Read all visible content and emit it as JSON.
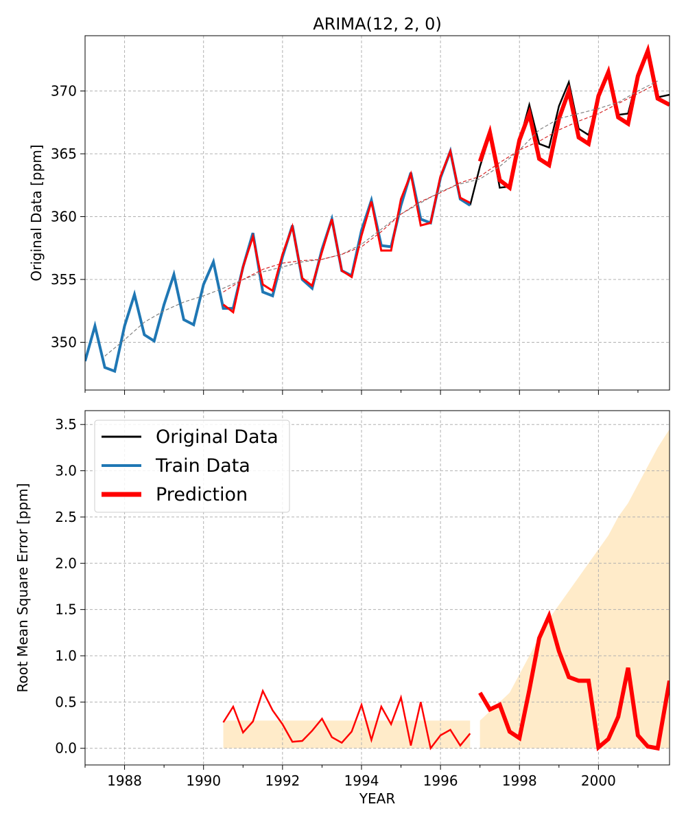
{
  "chart_data": [
    {
      "type": "line",
      "title": "ARIMA(12, 2, 0)",
      "xlabel": "",
      "ylabel": "Original Data [ppm]",
      "xlim": [
        1987.0,
        2001.8
      ],
      "ylim": [
        346.2,
        374.4
      ],
      "xticks": [
        1988,
        1990,
        1992,
        1994,
        1996,
        1998,
        2000
      ],
      "yticks": [
        350,
        355,
        360,
        365,
        370
      ],
      "grid": true,
      "series": [
        {
          "name": "Original Data",
          "color": "#000000",
          "x": [
            1996.75,
            1997.0,
            1997.25,
            1997.5,
            1997.75,
            1998.0,
            1998.25,
            1998.5,
            1998.75,
            1999.0,
            1999.25,
            1999.5,
            1999.75,
            2000.0,
            2000.25,
            2000.5,
            2000.75,
            2001.0,
            2001.25,
            2001.5,
            2001.8
          ],
          "y": [
            360.9,
            364.0,
            366.5,
            362.3,
            362.4,
            366.0,
            368.9,
            365.8,
            365.5,
            368.8,
            370.7,
            367.0,
            366.5,
            369.5,
            371.4,
            368.1,
            368.2,
            371.3,
            373.1,
            369.5,
            369.7
          ]
        },
        {
          "name": "Train Data",
          "color": "#1f77b4",
          "x": [
            1987.0,
            1987.25,
            1987.5,
            1987.75,
            1988.0,
            1988.25,
            1988.5,
            1988.75,
            1989.0,
            1989.25,
            1989.5,
            1989.75,
            1990.0,
            1990.25,
            1990.5,
            1990.75,
            1991.0,
            1991.25,
            1991.5,
            1991.75,
            1992.0,
            1992.25,
            1992.5,
            1992.75,
            1993.0,
            1993.25,
            1993.5,
            1993.75,
            1994.0,
            1994.25,
            1994.5,
            1994.75,
            1995.0,
            1995.25,
            1995.5,
            1995.75,
            1996.0,
            1996.25,
            1996.5,
            1996.75
          ],
          "y": [
            348.5,
            351.3,
            348.0,
            347.7,
            351.3,
            353.8,
            350.6,
            350.1,
            353.0,
            355.4,
            351.8,
            351.4,
            354.6,
            356.4,
            352.7,
            352.7,
            356.0,
            358.7,
            354.0,
            353.7,
            356.8,
            359.3,
            355.0,
            354.3,
            357.4,
            359.8,
            355.7,
            355.3,
            358.9,
            361.3,
            357.7,
            357.6,
            360.9,
            363.5,
            359.8,
            359.5,
            363.1,
            365.2,
            361.4,
            360.9
          ]
        },
        {
          "name": "Prediction",
          "color": "#ff0000",
          "x": [
            1990.5,
            1990.75,
            1991.0,
            1991.25,
            1991.5,
            1991.75,
            1992.0,
            1992.25,
            1992.5,
            1992.75,
            1993.0,
            1993.25,
            1993.5,
            1993.75,
            1994.0,
            1994.25,
            1994.5,
            1994.75,
            1995.0,
            1995.25,
            1995.5,
            1995.75,
            1996.0,
            1996.25,
            1996.5,
            1996.75
          ],
          "y": [
            353.0,
            352.4,
            356.0,
            358.4,
            354.6,
            354.1,
            357.0,
            359.2,
            355.1,
            354.5,
            357.2,
            359.8,
            355.7,
            355.2,
            358.5,
            361.2,
            357.3,
            357.3,
            361.4,
            363.4,
            359.3,
            359.5,
            363.2,
            365.2,
            361.5,
            361.1
          ]
        },
        {
          "name": "Prediction",
          "color": "#ff0000",
          "x": [
            1997.0,
            1997.25,
            1997.5,
            1997.75,
            1998.0,
            1998.25,
            1998.5,
            1998.75,
            1999.0,
            1999.25,
            1999.5,
            1999.75,
            2000.0,
            2000.25,
            2000.5,
            2000.75,
            2001.0,
            2001.25,
            2001.5,
            2001.8
          ],
          "y": [
            364.4,
            366.7,
            362.9,
            362.3,
            366.1,
            368.2,
            364.6,
            364.1,
            367.8,
            370.0,
            366.3,
            365.8,
            369.6,
            371.5,
            367.9,
            367.4,
            371.2,
            373.2,
            369.4,
            368.9
          ]
        },
        {
          "name": "",
          "color": "#808080",
          "x": [
            1987.5,
            1988.0,
            1988.5,
            1989.0,
            1989.5,
            1990.0,
            1990.5,
            1991.0,
            1991.5,
            1992.0,
            1992.5,
            1993.0,
            1993.5,
            1994.0,
            1994.5,
            1995.0,
            1995.5,
            1996.0,
            1996.5,
            1997.0,
            1997.5,
            1998.0,
            1998.5,
            1999.0,
            1999.5,
            2000.0,
            2000.5,
            2001.0,
            2001.5
          ],
          "y": [
            348.9,
            350.2,
            351.6,
            352.5,
            353.2,
            353.7,
            354.3,
            355.0,
            355.6,
            356.0,
            356.4,
            356.6,
            357.0,
            357.8,
            359.0,
            360.2,
            361.1,
            362.0,
            362.6,
            363.0,
            364.0,
            365.3,
            366.9,
            367.8,
            368.2,
            368.6,
            369.1,
            370.0,
            370.8
          ]
        },
        {
          "name": "",
          "color": "#d62728",
          "x": [
            1990.5,
            1991.0,
            1991.5,
            1992.0,
            1992.5,
            1993.0,
            1993.5,
            1994.0,
            1994.5,
            1995.0,
            1995.5,
            1996.0,
            1996.5,
            1997.0,
            1997.5,
            1998.0,
            1998.5,
            1999.0,
            1999.5,
            2000.0,
            2000.5,
            2001.0,
            2001.5
          ],
          "y": [
            354.0,
            355.0,
            355.8,
            356.3,
            356.5,
            356.6,
            357.0,
            357.6,
            358.8,
            360.2,
            361.2,
            361.9,
            362.7,
            363.2,
            364.3,
            365.3,
            366.0,
            366.9,
            367.6,
            368.2,
            369.0,
            369.8,
            370.6
          ]
        }
      ]
    },
    {
      "type": "line",
      "title": "",
      "xlabel": "YEAR",
      "ylabel": "Root Mean Square Error [ppm]",
      "xlim": [
        1987.0,
        2001.8
      ],
      "ylim": [
        -0.18,
        3.65
      ],
      "xticks": [
        1988,
        1990,
        1992,
        1994,
        1996,
        1998,
        2000
      ],
      "xtick_labels": [
        "1988",
        "1990",
        "1992",
        "1994",
        "1996",
        "1998",
        "2000"
      ],
      "yticks": [
        0.0,
        0.5,
        1.0,
        1.5,
        2.0,
        2.5,
        3.0,
        3.5
      ],
      "ytick_labels": [
        "0.0",
        "0.5",
        "1.0",
        "1.5",
        "2.0",
        "2.5",
        "3.0",
        "3.5"
      ],
      "grid": true,
      "legend": {
        "placement": "top-left",
        "entries": [
          {
            "label": "Original Data",
            "color": "#000000"
          },
          {
            "label": "Train Data",
            "color": "#1f77b4"
          },
          {
            "label": "Prediction",
            "color": "#ff0000"
          }
        ]
      },
      "bands": [
        {
          "color": "#ffe7bf",
          "x": [
            1990.5,
            1996.75
          ],
          "upper": [
            0.3,
            0.3
          ]
        },
        {
          "color": "#ffe7bf",
          "x": [
            1997.0,
            1997.25,
            1997.5,
            1997.75,
            1998.0,
            1998.25,
            1998.5,
            1998.75,
            1999.0,
            1999.25,
            1999.5,
            1999.75,
            2000.0,
            2000.25,
            2000.5,
            2000.75,
            2001.0,
            2001.25,
            2001.5,
            2001.8
          ],
          "upper": [
            0.3,
            0.4,
            0.5,
            0.6,
            0.8,
            1.0,
            1.2,
            1.4,
            1.55,
            1.7,
            1.85,
            2.0,
            2.15,
            2.3,
            2.5,
            2.65,
            2.85,
            3.05,
            3.25,
            3.45
          ]
        }
      ],
      "series": [
        {
          "name": "Prediction",
          "color": "#ff0000",
          "x": [
            1990.5,
            1990.75,
            1991.0,
            1991.25,
            1991.5,
            1991.75,
            1992.0,
            1992.25,
            1992.5,
            1992.75,
            1993.0,
            1993.25,
            1993.5,
            1993.75,
            1994.0,
            1994.25,
            1994.5,
            1994.75,
            1995.0,
            1995.25,
            1995.5,
            1995.75,
            1996.0,
            1996.25,
            1996.5,
            1996.75
          ],
          "y": [
            0.28,
            0.45,
            0.17,
            0.29,
            0.62,
            0.41,
            0.26,
            0.07,
            0.08,
            0.19,
            0.32,
            0.12,
            0.06,
            0.18,
            0.47,
            0.09,
            0.45,
            0.26,
            0.55,
            0.03,
            0.5,
            0.0,
            0.14,
            0.2,
            0.03,
            0.16
          ]
        },
        {
          "name": "Prediction",
          "color": "#ff0000",
          "x": [
            1997.0,
            1997.25,
            1997.5,
            1997.75,
            1998.0,
            1998.25,
            1998.5,
            1998.75,
            1999.0,
            1999.25,
            1999.5,
            1999.75,
            2000.0,
            2000.25,
            2000.5,
            2000.75,
            2001.0,
            2001.25,
            2001.5,
            2001.8
          ],
          "y": [
            0.6,
            0.42,
            0.47,
            0.18,
            0.11,
            0.63,
            1.19,
            1.43,
            1.05,
            0.77,
            0.73,
            0.73,
            0.01,
            0.1,
            0.34,
            0.87,
            0.14,
            0.02,
            0.0,
            0.73
          ]
        }
      ]
    }
  ]
}
